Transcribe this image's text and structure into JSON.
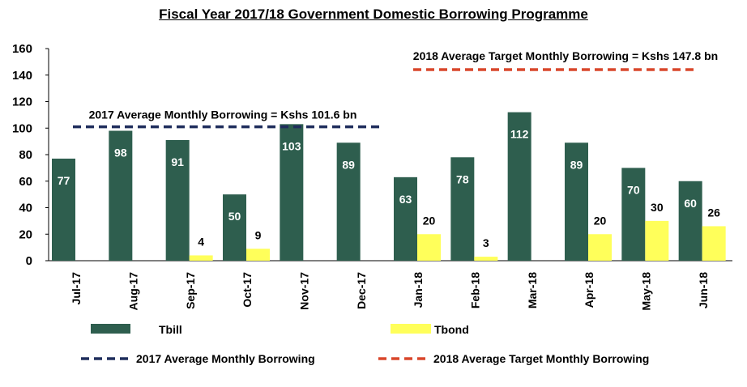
{
  "chart_data": {
    "type": "bar",
    "title": "Fiscal Year 2017/18 Government Domestic Borrowing Programme",
    "xlabel": "",
    "ylabel": "",
    "ylim": [
      0,
      160
    ],
    "yticks": [
      0,
      20,
      40,
      60,
      80,
      100,
      120,
      140,
      160
    ],
    "grid": false,
    "categories": [
      "Jul-17",
      "Aug-17",
      "Sep-17",
      "Oct-17",
      "Nov-17",
      "Dec-17",
      "Jan-18",
      "Feb-18",
      "Mar-18",
      "Apr-18",
      "May-18",
      "Jun-18"
    ],
    "series": [
      {
        "name": "Tbill",
        "color": "#2e5e4e",
        "values": [
          77,
          98,
          91,
          50,
          103,
          89,
          63,
          78,
          112,
          89,
          70,
          60
        ],
        "labels": [
          "77",
          "98",
          "91",
          "50",
          "103",
          "89",
          "63",
          "78",
          "112",
          "89",
          "70",
          "60"
        ]
      },
      {
        "name": "Tbond",
        "color": "#ffff5a",
        "values": [
          0,
          0,
          4,
          9,
          0,
          0,
          20,
          3,
          0,
          20,
          30,
          26
        ],
        "labels": [
          "",
          "",
          "4",
          "9",
          "",
          "",
          "20",
          "3",
          "",
          "20",
          "30",
          "26"
        ]
      }
    ],
    "reference_lines": [
      {
        "name": "2017 Average Monthly Borrowing",
        "value": 101.6,
        "color": "#1f2d5c",
        "label": "2017 Average Monthly Borrowing = Kshs 101.6 bn"
      },
      {
        "name": "2018 Average Target Monthly Borrowing",
        "value": 147.8,
        "color": "#d9472b",
        "label": "2018 Average Target Monthly Borrowing = Kshs 147.8 bn"
      }
    ],
    "legend": "bottom"
  }
}
